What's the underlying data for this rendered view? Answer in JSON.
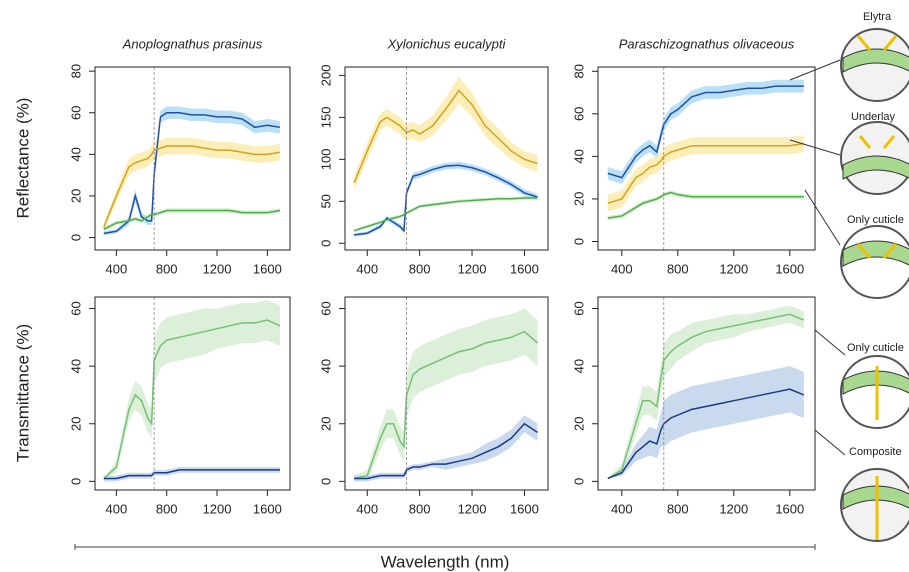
{
  "figure": {
    "ylabel_top": "Reflectance (%)",
    "ylabel_bottom": "Transmittance (%)",
    "xlabel": "Wavelength (nm)",
    "diagram_labels": [
      "Elytra",
      "Underlay",
      "Only cuticle",
      "Only cuticle",
      "Composite"
    ]
  },
  "chart_data": [
    {
      "type": "line",
      "title": "Anoplognathus prasinus",
      "x": [
        300,
        400,
        500,
        550,
        600,
        650,
        680,
        700,
        750,
        800,
        900,
        1000,
        1100,
        1200,
        1300,
        1400,
        1500,
        1600,
        1700
      ],
      "xlim": [
        230,
        1780
      ],
      "xticks": [
        400,
        800,
        1200,
        1600
      ],
      "ylim": [
        -6,
        82
      ],
      "yticks": [
        0,
        20,
        40,
        60,
        80
      ],
      "reference_x": 700,
      "series": [
        {
          "color": "#1f4fa8",
          "band_color": "#a9d8f2",
          "values": [
            2,
            3,
            8,
            20,
            10,
            8,
            8,
            30,
            58,
            60,
            60,
            59,
            59,
            58,
            58,
            57,
            53,
            54,
            53
          ],
          "errors": [
            1,
            1,
            2,
            3,
            2,
            2,
            2,
            3,
            3,
            3,
            3,
            3,
            3,
            3,
            3,
            3,
            3,
            3,
            3
          ]
        },
        {
          "color": "#d4a21c",
          "band_color": "#fbeaa6",
          "values": [
            5,
            20,
            34,
            36,
            37,
            38,
            40,
            42,
            43,
            44,
            44,
            44,
            43,
            42,
            42,
            41,
            40,
            40,
            41
          ],
          "errors": [
            2,
            3,
            4,
            4,
            4,
            4,
            4,
            4,
            4,
            4,
            4,
            4,
            4,
            4,
            4,
            4,
            4,
            4,
            4
          ]
        },
        {
          "color": "#4cae4c",
          "band_color": "#c8e8c2",
          "values": [
            4,
            7,
            8,
            9,
            8,
            10,
            11,
            11,
            12,
            13,
            13,
            13,
            13,
            13,
            13,
            12,
            12,
            12,
            13
          ],
          "errors": [
            1,
            1,
            1,
            1,
            1,
            1,
            1,
            1,
            1,
            1,
            1,
            1,
            1,
            1,
            1,
            1,
            1,
            1,
            1
          ]
        }
      ]
    },
    {
      "type": "line",
      "title": "Xylonichus eucalypti",
      "x": [
        300,
        400,
        500,
        550,
        600,
        650,
        680,
        700,
        750,
        800,
        900,
        1000,
        1100,
        1200,
        1300,
        1400,
        1500,
        1600,
        1700
      ],
      "xlim": [
        230,
        1780
      ],
      "xticks": [
        400,
        800,
        1200,
        1600
      ],
      "ylim": [
        -8,
        210
      ],
      "yticks": [
        0,
        50,
        100,
        150,
        200
      ],
      "reference_x": 700,
      "series": [
        {
          "color": "#1f4fa8",
          "band_color": "#a9d8f2",
          "values": [
            10,
            12,
            20,
            30,
            25,
            20,
            15,
            60,
            80,
            82,
            88,
            92,
            93,
            90,
            85,
            78,
            70,
            60,
            55
          ],
          "errors": [
            2,
            2,
            3,
            3,
            3,
            3,
            3,
            4,
            4,
            4,
            4,
            4,
            4,
            4,
            4,
            4,
            4,
            4,
            4
          ]
        },
        {
          "color": "#d4a21c",
          "band_color": "#fbeaa6",
          "values": [
            72,
            110,
            145,
            150,
            145,
            140,
            135,
            132,
            135,
            130,
            140,
            160,
            182,
            165,
            140,
            125,
            110,
            100,
            95
          ],
          "errors": [
            8,
            10,
            10,
            10,
            10,
            10,
            10,
            10,
            10,
            10,
            12,
            14,
            16,
            14,
            12,
            12,
            10,
            10,
            10
          ]
        },
        {
          "color": "#4cae4c",
          "band_color": "#c8e8c2",
          "values": [
            15,
            20,
            25,
            28,
            30,
            32,
            34,
            36,
            40,
            44,
            46,
            48,
            50,
            51,
            52,
            53,
            53,
            54,
            54
          ],
          "errors": [
            2,
            2,
            2,
            2,
            2,
            2,
            2,
            2,
            2,
            2,
            2,
            2,
            2,
            2,
            2,
            2,
            2,
            2,
            2
          ]
        }
      ]
    },
    {
      "type": "line",
      "title": "Paraschizognathus olivaceous",
      "x": [
        300,
        400,
        500,
        550,
        600,
        650,
        680,
        700,
        750,
        800,
        900,
        1000,
        1100,
        1200,
        1300,
        1400,
        1500,
        1600,
        1700
      ],
      "xlim": [
        230,
        1780
      ],
      "xticks": [
        400,
        800,
        1200,
        1600
      ],
      "ylim": [
        -4,
        82
      ],
      "yticks": [
        0,
        20,
        40,
        60,
        80
      ],
      "reference_x": 700,
      "series": [
        {
          "color": "#1f4fa8",
          "band_color": "#a9d8f2",
          "values": [
            32,
            30,
            40,
            43,
            45,
            42,
            50,
            55,
            60,
            62,
            68,
            70,
            70,
            71,
            72,
            72,
            73,
            73,
            73
          ],
          "errors": [
            3,
            3,
            3,
            3,
            3,
            3,
            3,
            3,
            3,
            3,
            3,
            3,
            3,
            3,
            3,
            3,
            3,
            3,
            3
          ]
        },
        {
          "color": "#d4a21c",
          "band_color": "#fbeaa6",
          "values": [
            18,
            20,
            30,
            32,
            35,
            36,
            38,
            40,
            42,
            43,
            45,
            45,
            45,
            45,
            45,
            45,
            45,
            45,
            46
          ],
          "errors": [
            4,
            4,
            4,
            4,
            4,
            4,
            4,
            4,
            4,
            4,
            4,
            4,
            4,
            4,
            4,
            4,
            4,
            4,
            4
          ]
        },
        {
          "color": "#4cae4c",
          "band_color": "#c8e8c2",
          "values": [
            11,
            12,
            16,
            18,
            19,
            20,
            21,
            22,
            23,
            22,
            21,
            21,
            21,
            21,
            21,
            21,
            21,
            21,
            21
          ],
          "errors": [
            1,
            1,
            1,
            1,
            1,
            1,
            1,
            1,
            1,
            1,
            1,
            1,
            1,
            1,
            1,
            1,
            1,
            1,
            1
          ]
        }
      ]
    },
    {
      "type": "line",
      "x": [
        300,
        400,
        500,
        550,
        600,
        650,
        680,
        700,
        750,
        800,
        900,
        1000,
        1100,
        1200,
        1300,
        1400,
        1500,
        1600,
        1700
      ],
      "xlim": [
        230,
        1780
      ],
      "xticks": [
        400,
        800,
        1200,
        1600
      ],
      "ylim": [
        -3,
        64
      ],
      "yticks": [
        0,
        20,
        40,
        60
      ],
      "reference_x": 700,
      "series": [
        {
          "color": "#74c074",
          "band_color": "#d3ebcf",
          "values": [
            1,
            5,
            25,
            30,
            28,
            22,
            20,
            42,
            47,
            49,
            50,
            51,
            52,
            53,
            54,
            55,
            55,
            56,
            54
          ],
          "errors": [
            0,
            2,
            4,
            5,
            5,
            5,
            5,
            8,
            8,
            8,
            8,
            8,
            8,
            7,
            7,
            7,
            7,
            7,
            7
          ]
        },
        {
          "color": "#1a3a8a",
          "band_color": "#bcd0ea",
          "values": [
            1,
            1,
            2,
            2,
            2,
            2,
            2,
            3,
            3,
            3,
            4,
            4,
            4,
            4,
            4,
            4,
            4,
            4,
            4
          ],
          "errors": [
            1,
            1,
            1,
            1,
            1,
            1,
            1,
            1,
            1,
            1,
            1,
            1,
            1,
            1,
            1,
            1,
            1,
            1,
            1
          ]
        }
      ]
    },
    {
      "type": "line",
      "x": [
        300,
        400,
        500,
        550,
        600,
        650,
        680,
        700,
        750,
        800,
        900,
        1000,
        1100,
        1200,
        1300,
        1400,
        1500,
        1600,
        1700
      ],
      "xlim": [
        230,
        1780
      ],
      "xticks": [
        400,
        800,
        1200,
        1600
      ],
      "ylim": [
        -3,
        64
      ],
      "yticks": [
        0,
        20,
        40,
        60
      ],
      "reference_x": 700,
      "series": [
        {
          "color": "#74c074",
          "band_color": "#d3ebcf",
          "values": [
            1,
            2,
            15,
            20,
            20,
            14,
            12,
            30,
            37,
            39,
            41,
            43,
            45,
            46,
            48,
            49,
            50,
            52,
            48
          ],
          "errors": [
            1,
            2,
            4,
            5,
            5,
            5,
            5,
            8,
            8,
            8,
            8,
            8,
            8,
            8,
            8,
            8,
            8,
            8,
            8
          ]
        },
        {
          "color": "#1a3a8a",
          "band_color": "#bcd0ea",
          "values": [
            1,
            1,
            2,
            2,
            2,
            2,
            2,
            4,
            5,
            5,
            6,
            6,
            7,
            8,
            10,
            12,
            15,
            20,
            17
          ],
          "errors": [
            1,
            1,
            1,
            1,
            1,
            1,
            1,
            1,
            1,
            1,
            1,
            2,
            2,
            2,
            3,
            3,
            3,
            3,
            3
          ]
        }
      ]
    },
    {
      "type": "line",
      "x": [
        300,
        400,
        500,
        550,
        600,
        650,
        680,
        700,
        750,
        800,
        900,
        1000,
        1100,
        1200,
        1300,
        1400,
        1500,
        1600,
        1700
      ],
      "xlim": [
        230,
        1780
      ],
      "xticks": [
        400,
        800,
        1200,
        1600
      ],
      "ylim": [
        -3,
        64
      ],
      "yticks": [
        0,
        20,
        40,
        60
      ],
      "reference_x": 700,
      "series": [
        {
          "color": "#74c074",
          "band_color": "#d3ebcf",
          "values": [
            1,
            4,
            20,
            28,
            28,
            26,
            36,
            42,
            45,
            47,
            50,
            52,
            53,
            54,
            55,
            56,
            57,
            58,
            56
          ],
          "errors": [
            0,
            2,
            4,
            5,
            5,
            5,
            5,
            6,
            6,
            5,
            5,
            4,
            4,
            4,
            3,
            3,
            3,
            3,
            3
          ]
        },
        {
          "color": "#1a3a8a",
          "band_color": "#bcd0ea",
          "values": [
            1,
            3,
            10,
            12,
            14,
            13,
            18,
            20,
            22,
            23,
            25,
            26,
            27,
            28,
            29,
            30,
            31,
            32,
            30
          ],
          "errors": [
            0,
            1,
            3,
            4,
            5,
            5,
            6,
            8,
            8,
            8,
            8,
            8,
            8,
            8,
            8,
            8,
            8,
            8,
            8
          ]
        }
      ]
    }
  ]
}
